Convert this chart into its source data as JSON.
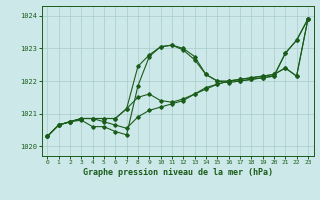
{
  "bg_color": "#cce8e8",
  "grid_color": "#aacccc",
  "line_color": "#1a5c1a",
  "xlabel": "Graphe pression niveau de la mer (hPa)",
  "xlim": [
    -0.5,
    23.5
  ],
  "ylim": [
    1019.7,
    1024.3
  ],
  "yticks": [
    1020,
    1021,
    1022,
    1023,
    1024
  ],
  "xticks": [
    0,
    1,
    2,
    3,
    4,
    5,
    6,
    7,
    8,
    9,
    10,
    11,
    12,
    13,
    14,
    15,
    16,
    17,
    18,
    19,
    20,
    21,
    22,
    23
  ],
  "line1": [
    1020.3,
    1020.65,
    1020.75,
    1020.85,
    1020.85,
    1020.85,
    1020.85,
    1021.15,
    1022.45,
    1022.8,
    1023.05,
    1023.1,
    1022.95,
    1022.65,
    1022.2,
    1022.0,
    1021.95,
    1022.0,
    1022.05,
    1022.1,
    1022.15,
    1022.85,
    1023.25,
    1023.9
  ],
  "line2": [
    1020.3,
    1020.65,
    1020.75,
    1020.8,
    1020.6,
    1020.6,
    1020.45,
    1020.35,
    1021.85,
    1022.75,
    1023.05,
    1023.1,
    1023.0,
    1022.75,
    1022.2,
    1022.0,
    1022.0,
    1022.0,
    1022.05,
    1022.1,
    1022.15,
    1022.85,
    1023.25,
    1023.9
  ],
  "line3": [
    1020.3,
    1020.65,
    1020.75,
    1020.85,
    1020.85,
    1020.85,
    1020.85,
    1021.15,
    1021.5,
    1021.6,
    1021.4,
    1021.35,
    1021.45,
    1021.6,
    1021.75,
    1021.9,
    1022.0,
    1022.05,
    1022.1,
    1022.15,
    1022.2,
    1022.4,
    1022.15,
    1023.9
  ],
  "line4": [
    1020.3,
    1020.65,
    1020.75,
    1020.85,
    1020.85,
    1020.75,
    1020.65,
    1020.55,
    1020.9,
    1021.1,
    1021.2,
    1021.3,
    1021.4,
    1021.6,
    1021.8,
    1021.9,
    1022.0,
    1022.05,
    1022.1,
    1022.15,
    1022.2,
    1022.4,
    1022.15,
    1023.9
  ]
}
